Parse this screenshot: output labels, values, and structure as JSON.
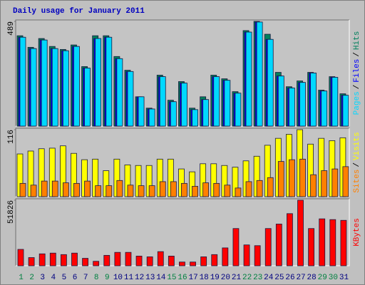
{
  "chart_data": [
    {
      "type": "bar",
      "title": "Daily usage for January 2011",
      "categories": [
        "1",
        "2",
        "3",
        "4",
        "5",
        "6",
        "7",
        "8",
        "9",
        "10",
        "11",
        "12",
        "13",
        "14",
        "15",
        "16",
        "17",
        "18",
        "19",
        "20",
        "21",
        "22",
        "23",
        "24",
        "25",
        "26",
        "27",
        "28",
        "29",
        "30",
        "31"
      ],
      "category_colors": [
        "#008040",
        "#008040",
        "#000080",
        "#000080",
        "#000080",
        "#000080",
        "#000080",
        "#008040",
        "#008040",
        "#000080",
        "#000080",
        "#000080",
        "#000080",
        "#000080",
        "#008040",
        "#008040",
        "#000080",
        "#000080",
        "#000080",
        "#000080",
        "#000080",
        "#008040",
        "#008040",
        "#000080",
        "#000080",
        "#000080",
        "#000080",
        "#000080",
        "#008040",
        "#008040",
        "#000080"
      ],
      "legend_separator": "/",
      "ylim": [
        0,
        489
      ],
      "yticks": [
        489
      ],
      "series": [
        {
          "name": "Hits",
          "color": "#00805c",
          "values": [
            422,
            368,
            409,
            372,
            358,
            379,
            278,
            422,
            422,
            325,
            261,
            137,
            84,
            238,
            121,
            208,
            84,
            137,
            238,
            221,
            161,
            446,
            489,
            429,
            251,
            184,
            211,
            251,
            168,
            231,
            151
          ]
        },
        {
          "name": "Files",
          "color": "#0000ff",
          "values": [
            415,
            362,
            402,
            362,
            352,
            372,
            271,
            409,
            415,
            315,
            255,
            137,
            80,
            231,
            114,
            201,
            77,
            124,
            231,
            214,
            154,
            439,
            486,
            405,
            234,
            178,
            204,
            248,
            164,
            228,
            144
          ]
        },
        {
          "name": "Pages",
          "color": "#00d8ff",
          "values": [
            415,
            362,
            402,
            362,
            352,
            372,
            271,
            409,
            415,
            315,
            255,
            137,
            80,
            231,
            114,
            201,
            77,
            124,
            231,
            214,
            154,
            439,
            486,
            405,
            234,
            178,
            204,
            248,
            164,
            228,
            144
          ]
        }
      ]
    },
    {
      "type": "bar",
      "legend_separator": "/",
      "ylim": [
        0,
        116
      ],
      "yticks": [
        116
      ],
      "series": [
        {
          "name": "Visits",
          "color": "#ffff00",
          "values": [
            74,
            79,
            83,
            84,
            88,
            75,
            64,
            65,
            45,
            65,
            55,
            54,
            54,
            65,
            65,
            48,
            43,
            57,
            57,
            54,
            51,
            62,
            70,
            89,
            101,
            108,
            116,
            91,
            101,
            97,
            102
          ]
        },
        {
          "name": "Sites",
          "color": "#ff8000",
          "values": [
            23,
            20,
            27,
            27,
            24,
            23,
            27,
            19,
            19,
            28,
            20,
            19,
            19,
            26,
            26,
            23,
            18,
            24,
            23,
            20,
            15,
            26,
            28,
            33,
            61,
            64,
            65,
            38,
            45,
            48,
            52
          ]
        }
      ]
    },
    {
      "type": "bar",
      "ylim": [
        0,
        51826
      ],
      "yticks": [
        51826
      ],
      "series": [
        {
          "name": "KBytes",
          "color": "#ff0000",
          "values": [
            12958,
            6479,
            9424,
            10013,
            8834,
            10013,
            5890,
            3534,
            8245,
            10601,
            10601,
            7656,
            7067,
            11190,
            7656,
            2945,
            2945,
            7067,
            8834,
            14135,
            29448,
            16490,
            15901,
            29448,
            32982,
            41226,
            51826,
            29448,
            37103,
            36514,
            35925
          ]
        }
      ]
    }
  ]
}
